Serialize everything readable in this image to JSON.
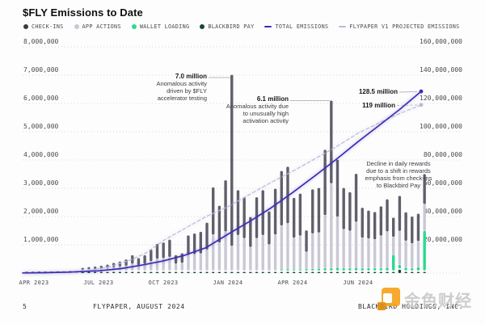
{
  "page": {
    "title": "$FLY Emissions to Date"
  },
  "legend": [
    {
      "label": "CHECK-INS",
      "color": "#3a3a44",
      "type": "dot"
    },
    {
      "label": "APP ACTIONS",
      "color": "#c9c8d5",
      "type": "dot"
    },
    {
      "label": "WALLET LOADING",
      "color": "#2bd98f",
      "type": "dot"
    },
    {
      "label": "BLACKBIRD PAY",
      "color": "#1c4434",
      "type": "dot"
    },
    {
      "label": "TOTAL EMISSIONS",
      "color": "#3a2eb4",
      "type": "line"
    },
    {
      "label": "FLYPAPER V1 PROJECTED EMISSIONS",
      "color": "#bcb9da",
      "type": "line"
    }
  ],
  "chart_data": {
    "type": "stacked-bar+line",
    "title": "$FLY Emissions to Date",
    "left_axis": {
      "min": 0,
      "max": 8000000,
      "ticks": [
        "1,000,000",
        "2,000,000",
        "3,000,000",
        "4,000,000",
        "5,000,000",
        "6,000,000",
        "7,000,000",
        "8,000,000"
      ]
    },
    "right_axis": {
      "min": 0,
      "max": 160000000,
      "ticks": [
        "20,000,000",
        "40,000,000",
        "60,000,000",
        "80,000,000",
        "100,000,000",
        "120,000,000",
        "140,000,000",
        "160,000,000"
      ]
    },
    "x_ticks": [
      {
        "label": "APR 2023",
        "x": 42
      },
      {
        "label": "JUL 2023",
        "x": 122
      },
      {
        "label": "OCT 2023",
        "x": 202
      },
      {
        "label": "JAN 2024",
        "x": 282
      },
      {
        "label": "APR 2024",
        "x": 362
      },
      {
        "label": "JUN 2024",
        "x": 443
      }
    ],
    "bar_unit": "millions of $FLY per period (left axis)",
    "bar_value_order": [
      "app_actions",
      "check_ins",
      "wallet_loading",
      "blackbird_pay"
    ],
    "bars": [
      [
        0.01,
        0.02,
        0,
        0
      ],
      [
        0.01,
        0.02,
        0,
        0
      ],
      [
        0.01,
        0.03,
        0,
        0
      ],
      [
        0.01,
        0.03,
        0,
        0
      ],
      [
        0.02,
        0.03,
        0,
        0
      ],
      [
        0.02,
        0.04,
        0,
        0
      ],
      [
        0.02,
        0.04,
        0,
        0
      ],
      [
        0.02,
        0.05,
        0,
        0
      ],
      [
        0.03,
        0.05,
        0,
        0
      ],
      [
        0.03,
        0.06,
        0,
        0.02
      ],
      [
        0.05,
        0.07,
        0,
        0.02
      ],
      [
        0.06,
        0.08,
        0,
        0.02
      ],
      [
        0.08,
        0.09,
        0,
        0.02
      ],
      [
        0.09,
        0.12,
        0,
        0.02
      ],
      [
        0.12,
        0.15,
        0,
        0.02
      ],
      [
        0.14,
        0.18,
        0,
        0.02
      ],
      [
        0.17,
        0.22,
        0,
        0.02
      ],
      [
        0.24,
        0.3,
        0,
        0.02
      ],
      [
        0.19,
        0.25,
        0,
        0.02
      ],
      [
        0.24,
        0.3,
        0,
        0.02
      ],
      [
        0.33,
        0.41,
        0,
        0.02
      ],
      [
        0.42,
        0.52,
        0,
        0.02
      ],
      [
        0.44,
        0.55,
        0,
        0.02
      ],
      [
        0.48,
        0.61,
        0,
        0.02
      ],
      [
        0.24,
        0.3,
        0,
        0.02
      ],
      [
        0.27,
        0.34,
        0,
        0.02
      ],
      [
        0.55,
        0.69,
        0,
        0.02
      ],
      [
        0.58,
        0.73,
        0,
        0.02
      ],
      [
        0.6,
        0.77,
        0,
        0.02
      ],
      [
        0.74,
        0.95,
        0,
        0.02
      ],
      [
        1.27,
        1.67,
        0,
        0.02
      ],
      [
        0.99,
        1.3,
        0,
        0.02
      ],
      [
        1.38,
        1.81,
        0,
        0.02
      ],
      [
        0.87,
        6.05,
        0,
        0.02
      ],
      [
        1.25,
        1.59,
        0,
        0.02
      ],
      [
        1.14,
        1.45,
        0,
        0.02
      ],
      [
        0.83,
        1.06,
        0,
        0.02
      ],
      [
        1.14,
        1.45,
        0,
        0.02
      ],
      [
        1.25,
        1.59,
        0,
        0.02
      ],
      [
        0.92,
        1.17,
        0,
        0.02
      ],
      [
        1.27,
        1.62,
        0,
        0.02
      ],
      [
        1.55,
        1.93,
        0.04,
        0.03
      ],
      [
        1.62,
        2.0,
        0.05,
        0.03
      ],
      [
        1.12,
        1.41,
        0.04,
        0.03
      ],
      [
        1.19,
        1.49,
        0.04,
        0.03
      ],
      [
        0.61,
        0.76,
        0.05,
        0.03
      ],
      [
        1.25,
        1.56,
        0.06,
        0.03
      ],
      [
        1.27,
        1.58,
        0.07,
        0.03
      ],
      [
        1.88,
        2.31,
        0.08,
        0.03
      ],
      [
        3.0,
        2.93,
        0.08,
        0.03
      ],
      [
        1.8,
        2.02,
        0.1,
        0.03
      ],
      [
        1.38,
        1.46,
        0.08,
        0.03
      ],
      [
        1.32,
        1.37,
        0.08,
        0.03
      ],
      [
        1.62,
        1.7,
        0.1,
        0.03
      ],
      [
        1.08,
        1.06,
        0.08,
        0.03
      ],
      [
        1.05,
        0.99,
        0.08,
        0.03
      ],
      [
        1.02,
        0.97,
        0.08,
        0.03
      ],
      [
        1.15,
        1.04,
        0.08,
        0.03
      ],
      [
        1.28,
        1.14,
        0.1,
        0.03
      ],
      [
        0.64,
        0.68,
        0.55,
        0.03
      ],
      [
        1.2,
        1.24,
        0.12,
        0.12
      ],
      [
        0.95,
        1.01,
        0.1,
        0.04
      ],
      [
        0.88,
        0.95,
        0.08,
        0.04
      ],
      [
        0.92,
        0.97,
        0.12,
        0.04
      ],
      [
        0.95,
        1.06,
        1.4,
        0.04
      ]
    ],
    "lines": {
      "total_emissions": {
        "color": "#3a2eb4",
        "dashed": false,
        "unit": "millions (right axis)",
        "points": [
          [
            28,
            0.1
          ],
          [
            55,
            0.3
          ],
          [
            85,
            0.7
          ],
          [
            122,
            1.6
          ],
          [
            150,
            3.2
          ],
          [
            175,
            5.6
          ],
          [
            202,
            8.6
          ],
          [
            228,
            12.5
          ],
          [
            255,
            18
          ],
          [
            282,
            27.5
          ],
          [
            310,
            37
          ],
          [
            335,
            46
          ],
          [
            362,
            57
          ],
          [
            390,
            69
          ],
          [
            415,
            80
          ],
          [
            443,
            93
          ],
          [
            468,
            104
          ],
          [
            495,
            116
          ],
          [
            521,
            128.5
          ]
        ]
      },
      "flypaper_v1_projected": {
        "color": "#bcb9da",
        "dashed": true,
        "unit": "millions (right axis)",
        "points": [
          [
            28,
            0.05
          ],
          [
            55,
            0.15
          ],
          [
            85,
            0.7
          ],
          [
            110,
            1.8
          ],
          [
            135,
            4.5
          ],
          [
            160,
            9
          ],
          [
            180,
            14
          ],
          [
            202,
            23
          ],
          [
            230,
            32
          ],
          [
            255,
            40
          ],
          [
            282,
            47
          ],
          [
            310,
            56
          ],
          [
            335,
            64
          ],
          [
            362,
            72
          ],
          [
            390,
            81
          ],
          [
            415,
            89
          ],
          [
            443,
            99
          ],
          [
            468,
            106
          ],
          [
            495,
            113
          ],
          [
            521,
            119
          ]
        ]
      }
    },
    "end_markers": [
      {
        "x": 521,
        "value": 128.5,
        "color": "#3a2eb4"
      },
      {
        "x": 521,
        "value": 119,
        "color": "#bcb9da"
      }
    ],
    "annotations": [
      {
        "title": "7.0 million",
        "lines": [
          "Anomalous activity",
          "driven by $FLY",
          "accelerator testing"
        ],
        "leader": [
          258,
          96,
          285,
          96
        ],
        "leader_dashed": false
      },
      {
        "title": "6.1 million",
        "lines": [
          "Anomalous activity due",
          "to unusually high",
          "activation activity"
        ],
        "leader": [
          359,
          124.5,
          408,
          124.5
        ],
        "leader_dashed": false
      },
      {
        "title": "128.5 million",
        "lines": [],
        "leader": [
          494,
          114,
          516,
          113.5
        ],
        "leader_dashed": false
      },
      {
        "title": "119 million",
        "lines": [],
        "leader": [
          491,
          130.5,
          516,
          130
        ],
        "leader_dashed": true
      },
      {
        "title": "",
        "lines": [
          "Decline in daily rewards",
          "due to a shift in rewards",
          "emphasis from check-ins",
          "to Blackbird Pay"
        ]
      }
    ]
  },
  "colors": {
    "bar_dark": "#615f6c",
    "bar_light": "#c9c8d5",
    "bar_green": "#2bd98f",
    "bar_pay": "#1c4434",
    "grid": "#d8d8dd",
    "leader": "#b9b9bf"
  },
  "footer": {
    "page_number": "5",
    "left": "FLYPAPER, AUGUST 2024",
    "right": "BLACKBIRD HOLDINGS, INC."
  },
  "watermark": {
    "text": "金色财经"
  }
}
